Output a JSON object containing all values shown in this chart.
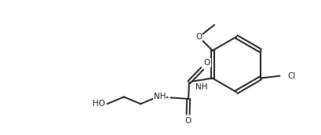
{
  "line_color": "#1a1a1a",
  "bg_color": "#ffffff",
  "lw": 1.4,
  "fs": 7.5,
  "figsize": [
    4.1,
    1.72
  ],
  "dpi": 100,
  "xlim": [
    0.0,
    4.1
  ],
  "ylim": [
    0.0,
    1.72
  ]
}
